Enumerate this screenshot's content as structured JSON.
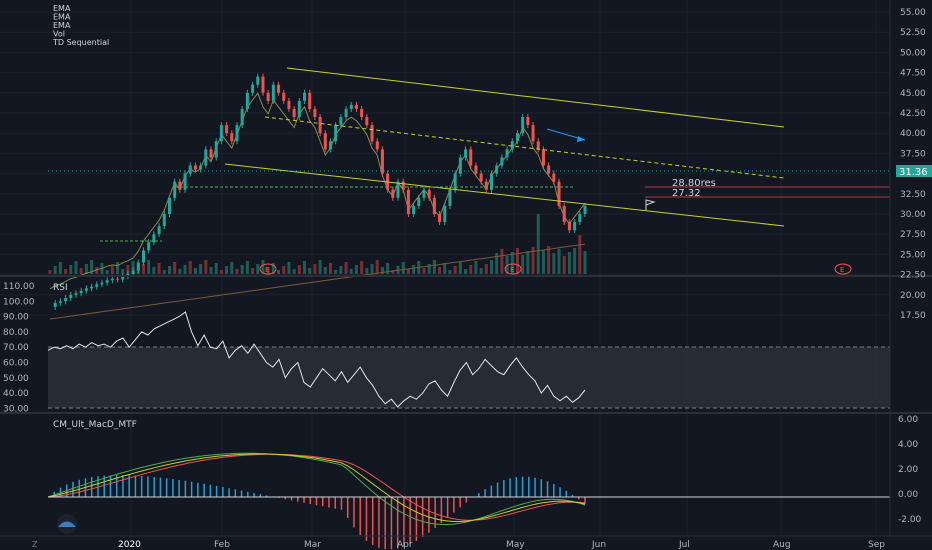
{
  "indicators_main": [
    "EMA",
    "EMA",
    "EMA",
    "Vol",
    "TD Sequential"
  ],
  "price_axis": [
    "55.00",
    "52.50",
    "50.00",
    "47.50",
    "45.00",
    "42.50",
    "40.00",
    "37.50",
    "35.00",
    "32.50",
    "30.00",
    "27.50",
    "25.00",
    "22.50",
    "20.00",
    "17.50"
  ],
  "last_price": "31.36",
  "annotations": {
    "res_label": "28.80res",
    "support_label": "27.32"
  },
  "earnings_marker": "E",
  "rsi": {
    "title": "RSI",
    "axis": [
      "110.00",
      "100.00",
      "90.00",
      "80.00",
      "70.00",
      "60.00",
      "50.00",
      "40.00",
      "30.00"
    ],
    "band_upper": 70,
    "band_lower": 30,
    "series": [
      68,
      70,
      69,
      71,
      69,
      72,
      70,
      73,
      71,
      72,
      70,
      74,
      76,
      70,
      75,
      80,
      78,
      82,
      84,
      86,
      88,
      90,
      93,
      80,
      71,
      78,
      70,
      69,
      74,
      63,
      68,
      71,
      66,
      72,
      66,
      60,
      57,
      62,
      50,
      56,
      60,
      47,
      44,
      50,
      56,
      52,
      48,
      54,
      47,
      52,
      57,
      50,
      45,
      38,
      33,
      36,
      31,
      35,
      38,
      36,
      40,
      46,
      48,
      42,
      38,
      47,
      55,
      60,
      52,
      56,
      62,
      58,
      54,
      52,
      58,
      63,
      57,
      52,
      48,
      40,
      45,
      38,
      35,
      38,
      34,
      37,
      42
    ]
  },
  "macd": {
    "title": "CM_Ult_MacD_MTF",
    "axis": [
      "6.00",
      "4.00",
      "2.00",
      "0.00",
      "-2.00"
    ]
  },
  "time_axis": [
    "2020",
    "Feb",
    "Mar",
    "Apr",
    "May",
    "Jun",
    "Jul",
    "Aug",
    "Sep"
  ],
  "colors": {
    "bg": "#131722",
    "grid": "#1f2331",
    "bull": "#26a69a",
    "bear": "#ef5350",
    "trend": "#c6d22b",
    "price_tag": "#26a69a"
  }
}
